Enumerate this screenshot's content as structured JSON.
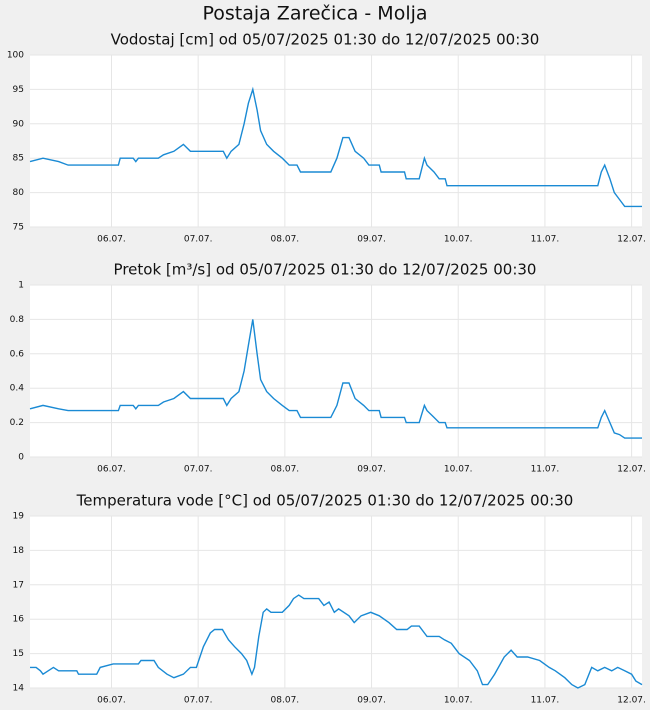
{
  "title": "Postaja Zarečica - Molja",
  "chart_data": [
    {
      "type": "line",
      "title": "Vodostaj [cm] od 05/07/2025 01:30 do 12/07/2025 00:30",
      "color": "#1a8ad4",
      "grid": true,
      "x": [
        5.06,
        5.21,
        5.39,
        5.5,
        6.08,
        6.1,
        6.25,
        6.28,
        6.31,
        6.54,
        6.6,
        6.72,
        6.83,
        6.91,
        7.29,
        7.33,
        7.38,
        7.47,
        7.53,
        7.58,
        7.63,
        7.68,
        7.72,
        7.79,
        7.87,
        7.97,
        8.05,
        8.14,
        8.18,
        8.53,
        8.6,
        8.67,
        8.74,
        8.81,
        8.91,
        8.97,
        9.09,
        9.11,
        9.38,
        9.4,
        9.55,
        9.61,
        9.64,
        9.72,
        9.78,
        9.85,
        9.87,
        11.61,
        11.65,
        11.69,
        11.75,
        11.8,
        11.86,
        11.92,
        12.12
      ],
      "values": [
        84.5,
        85,
        84.5,
        84,
        84,
        85,
        85,
        84.5,
        85,
        85,
        85.5,
        86,
        87,
        86,
        86,
        85,
        86,
        87,
        90,
        93,
        95,
        92,
        89,
        87,
        86,
        85,
        84,
        84,
        83,
        83,
        85,
        88,
        88,
        86,
        85,
        84,
        84,
        83,
        83,
        82,
        82,
        85,
        84,
        83,
        82,
        82,
        81,
        81,
        83,
        84,
        82,
        80,
        79,
        78,
        78
      ],
      "xlim": [
        5.06,
        12.12
      ],
      "ylim": [
        75,
        100
      ],
      "yticks": [
        75,
        80,
        85,
        90,
        95,
        100
      ],
      "xticks": [
        {
          "value": 6,
          "label": "06.07."
        },
        {
          "value": 7,
          "label": "07.07."
        },
        {
          "value": 8,
          "label": "08.07."
        },
        {
          "value": 9,
          "label": "09.07."
        },
        {
          "value": 10,
          "label": "10.07."
        },
        {
          "value": 11,
          "label": "11.07."
        },
        {
          "value": 12,
          "label": "12.07."
        }
      ]
    },
    {
      "type": "line",
      "title": "Pretok [m³/s] od 05/07/2025 01:30 do 12/07/2025 00:30",
      "color": "#1a8ad4",
      "grid": true,
      "x": [
        5.06,
        5.21,
        5.39,
        5.5,
        6.08,
        6.1,
        6.25,
        6.28,
        6.31,
        6.54,
        6.6,
        6.72,
        6.83,
        6.91,
        7.29,
        7.33,
        7.38,
        7.47,
        7.53,
        7.58,
        7.63,
        7.68,
        7.72,
        7.79,
        7.87,
        7.97,
        8.05,
        8.14,
        8.18,
        8.53,
        8.6,
        8.67,
        8.74,
        8.81,
        8.91,
        8.97,
        9.09,
        9.11,
        9.38,
        9.4,
        9.55,
        9.61,
        9.64,
        9.72,
        9.78,
        9.85,
        9.87,
        11.61,
        11.65,
        11.69,
        11.75,
        11.8,
        11.86,
        11.92,
        12.12
      ],
      "values": [
        0.28,
        0.3,
        0.28,
        0.27,
        0.27,
        0.3,
        0.3,
        0.28,
        0.3,
        0.3,
        0.32,
        0.34,
        0.38,
        0.34,
        0.34,
        0.3,
        0.34,
        0.38,
        0.5,
        0.65,
        0.8,
        0.6,
        0.45,
        0.38,
        0.34,
        0.3,
        0.27,
        0.27,
        0.23,
        0.23,
        0.3,
        0.43,
        0.43,
        0.34,
        0.3,
        0.27,
        0.27,
        0.23,
        0.23,
        0.2,
        0.2,
        0.3,
        0.27,
        0.23,
        0.2,
        0.2,
        0.17,
        0.17,
        0.23,
        0.27,
        0.2,
        0.14,
        0.13,
        0.11,
        0.11
      ],
      "xlim": [
        5.06,
        12.12
      ],
      "ylim": [
        0,
        1
      ],
      "yticks": [
        0,
        0.2,
        0.4,
        0.6,
        0.8,
        1
      ],
      "xticks": [
        {
          "value": 6,
          "label": "06.07."
        },
        {
          "value": 7,
          "label": "07.07."
        },
        {
          "value": 8,
          "label": "08.07."
        },
        {
          "value": 9,
          "label": "09.07."
        },
        {
          "value": 10,
          "label": "10.07."
        },
        {
          "value": 11,
          "label": "11.07."
        },
        {
          "value": 12,
          "label": "12.07."
        }
      ]
    },
    {
      "type": "line",
      "title": "Temperatura vode [°C] od 05/07/2025 01:30 do 12/07/2025 00:30",
      "color": "#1a8ad4",
      "grid": true,
      "x": [
        5.06,
        5.13,
        5.18,
        5.21,
        5.27,
        5.33,
        5.39,
        5.6,
        5.62,
        5.83,
        5.87,
        6.02,
        6.31,
        6.34,
        6.49,
        6.54,
        6.64,
        6.72,
        6.83,
        6.91,
        6.98,
        7.06,
        7.14,
        7.19,
        7.28,
        7.35,
        7.42,
        7.5,
        7.56,
        7.62,
        7.65,
        7.7,
        7.75,
        7.79,
        7.84,
        7.97,
        8.05,
        8.1,
        8.16,
        8.22,
        8.39,
        8.45,
        8.51,
        8.57,
        8.62,
        8.74,
        8.8,
        8.88,
        8.99,
        9.09,
        9.2,
        9.29,
        9.41,
        9.46,
        9.55,
        9.64,
        9.78,
        9.84,
        9.92,
        10.01,
        10.13,
        10.22,
        10.28,
        10.34,
        10.42,
        10.53,
        10.61,
        10.68,
        10.8,
        10.94,
        11.05,
        11.12,
        11.23,
        11.31,
        11.38,
        11.46,
        11.54,
        11.61,
        11.69,
        11.77,
        11.84,
        11.92,
        12.0,
        12.05,
        12.12
      ],
      "values": [
        14.6,
        14.6,
        14.5,
        14.4,
        14.5,
        14.6,
        14.5,
        14.5,
        14.4,
        14.4,
        14.6,
        14.7,
        14.7,
        14.8,
        14.8,
        14.6,
        14.4,
        14.3,
        14.4,
        14.6,
        14.6,
        15.2,
        15.6,
        15.7,
        15.7,
        15.4,
        15.2,
        15.0,
        14.8,
        14.4,
        14.6,
        15.5,
        16.2,
        16.3,
        16.2,
        16.2,
        16.4,
        16.6,
        16.7,
        16.6,
        16.6,
        16.4,
        16.5,
        16.2,
        16.3,
        16.1,
        15.9,
        16.1,
        16.2,
        16.1,
        15.9,
        15.7,
        15.7,
        15.8,
        15.8,
        15.5,
        15.5,
        15.4,
        15.3,
        15.0,
        14.8,
        14.5,
        14.1,
        14.1,
        14.4,
        14.9,
        15.1,
        14.9,
        14.9,
        14.8,
        14.6,
        14.5,
        14.3,
        14.1,
        14.0,
        14.1,
        14.6,
        14.5,
        14.6,
        14.5,
        14.6,
        14.5,
        14.4,
        14.2,
        14.1
      ],
      "xlim": [
        5.06,
        12.12
      ],
      "ylim": [
        14,
        19
      ],
      "yticks": [
        14,
        15,
        16,
        17,
        18,
        19
      ],
      "xticks": [
        {
          "value": 6,
          "label": "06.07."
        },
        {
          "value": 7,
          "label": "07.07."
        },
        {
          "value": 8,
          "label": "08.07."
        },
        {
          "value": 9,
          "label": "09.07."
        },
        {
          "value": 10,
          "label": "10.07."
        },
        {
          "value": 11,
          "label": "11.07."
        },
        {
          "value": 12,
          "label": "12.07."
        }
      ]
    }
  ]
}
